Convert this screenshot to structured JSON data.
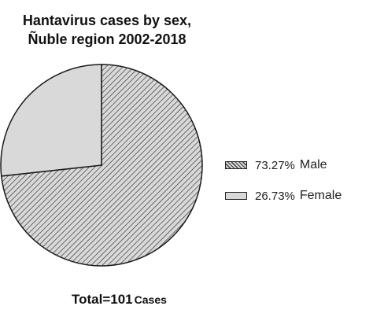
{
  "chart_data": {
    "type": "pie",
    "title_lines": [
      "Hantavirus cases by sex,",
      "Ñuble region 2002-2018"
    ],
    "slices": [
      {
        "name": "Male",
        "label": "73.27%",
        "value": 73.27,
        "fill": "hatch",
        "color": "#d9d9d9"
      },
      {
        "name": "Female",
        "label": "26.73%",
        "value": 26.73,
        "fill": "solid",
        "color": "#d9d9d9"
      }
    ],
    "legend_position": "right",
    "total": {
      "value_text": "Total=101",
      "unit_text": "Cases"
    }
  }
}
